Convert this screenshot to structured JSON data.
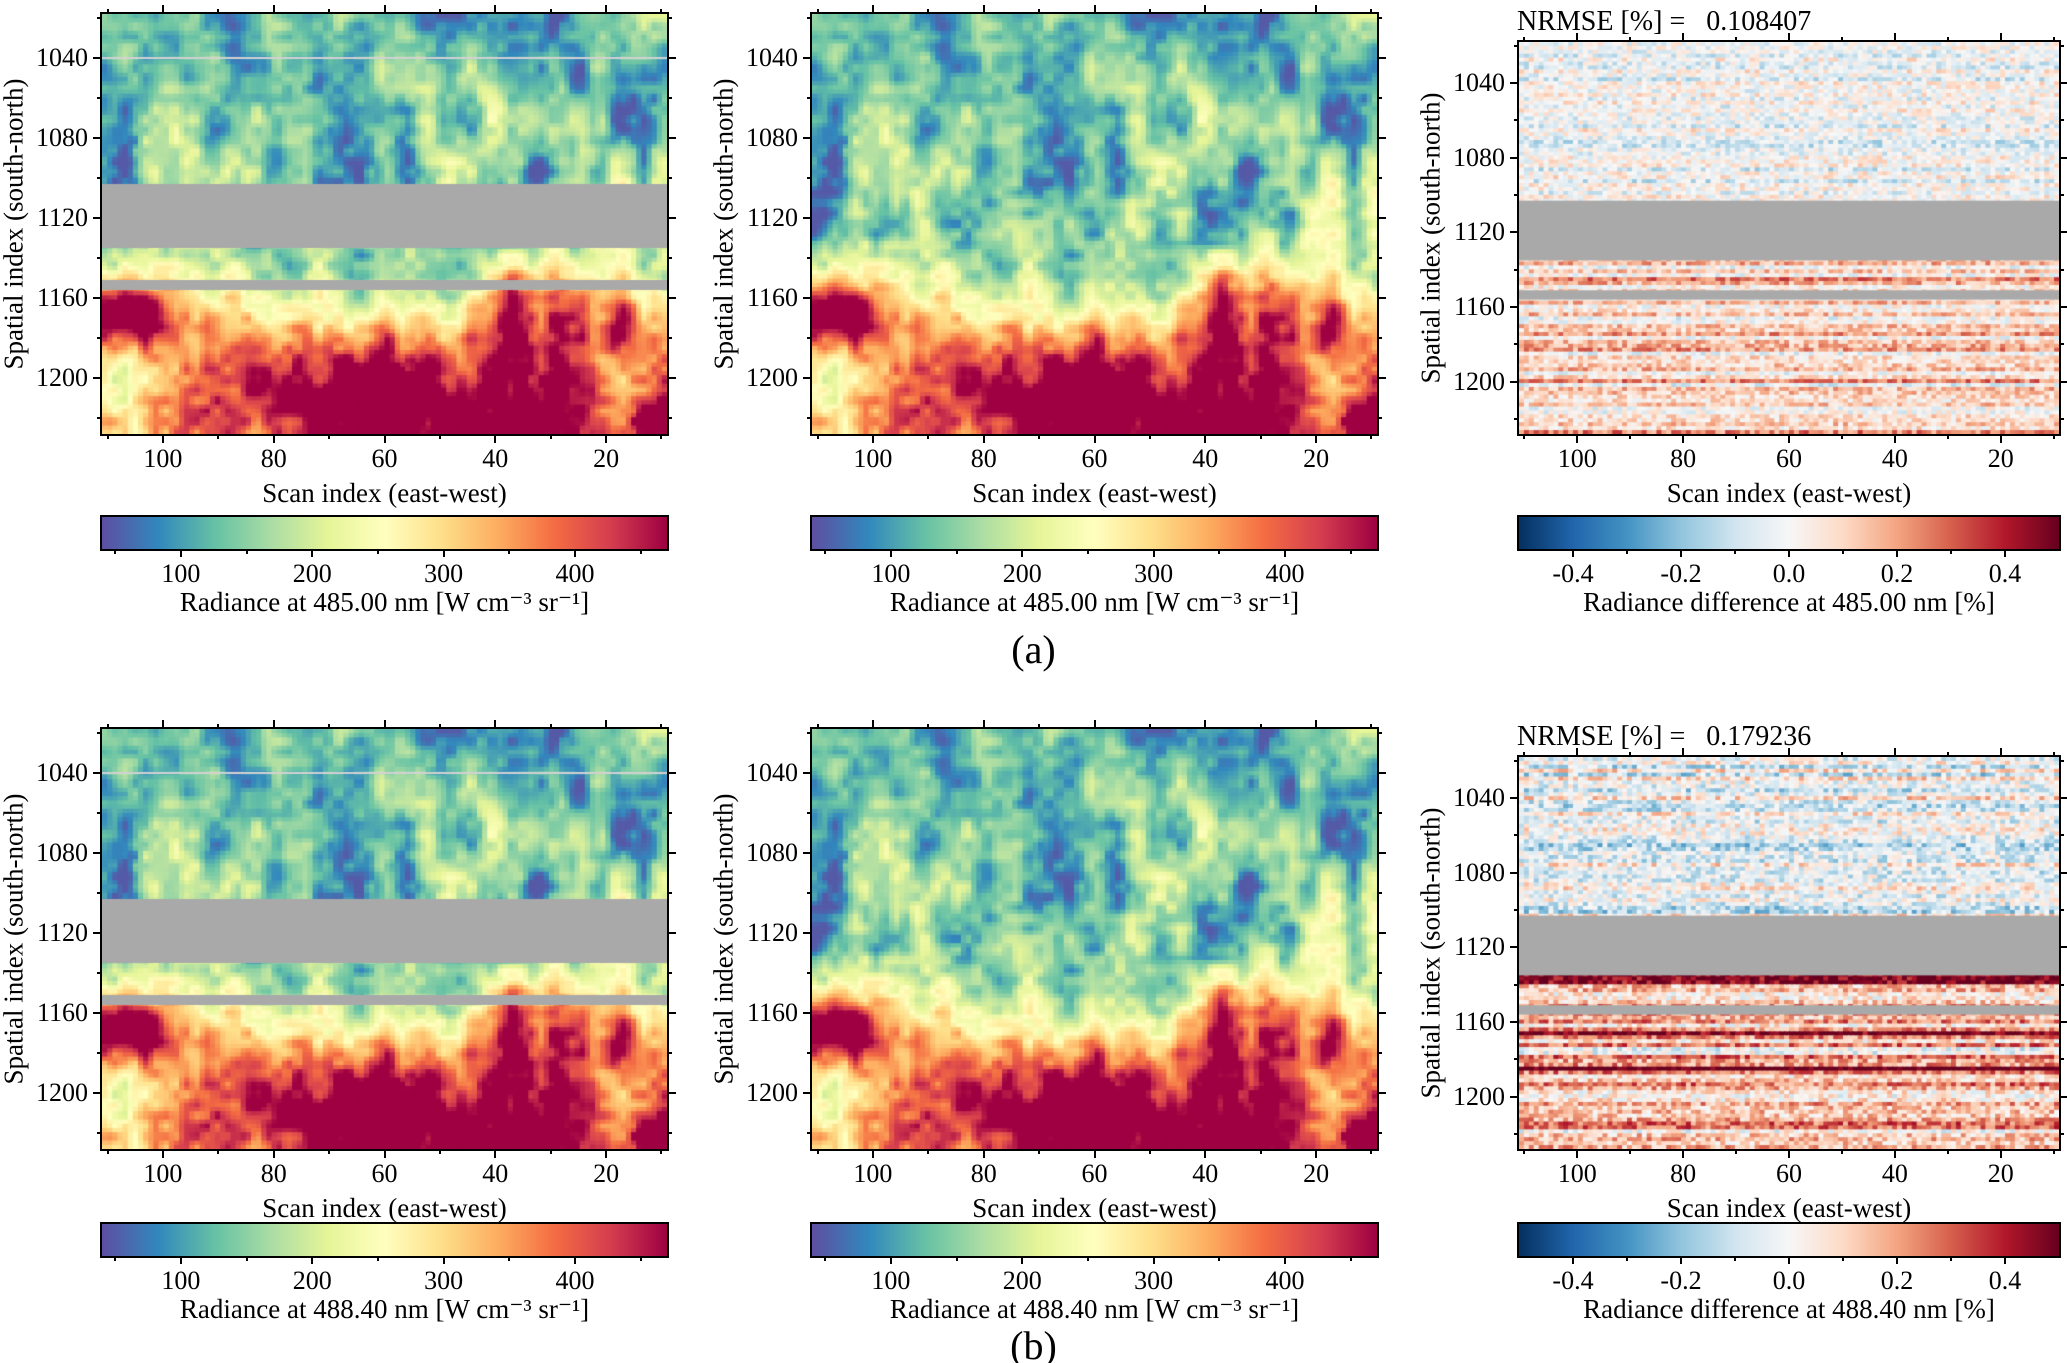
{
  "figure": {
    "background": "#ffffff",
    "rows": [
      {
        "caption": "(a)"
      },
      {
        "caption": "(b)"
      }
    ]
  },
  "chart_data": {
    "type": "heatmap",
    "grid": {
      "cols": 110,
      "rows": 100
    },
    "colormaps": {
      "spectral_r": [
        "#5e4fa2",
        "#3288bd",
        "#66c2a5",
        "#abdda4",
        "#e6f598",
        "#ffffbf",
        "#fee08b",
        "#fdae61",
        "#f46d43",
        "#d53e4f",
        "#9e0142"
      ],
      "rdbu_r": [
        "#053061",
        "#2166ac",
        "#4393c3",
        "#92c5de",
        "#d1e5f0",
        "#f7f7f7",
        "#fddbc7",
        "#f4a582",
        "#d6604d",
        "#b2182b",
        "#67001f"
      ]
    },
    "axes": {
      "xlabel": "Scan index (east-west)",
      "ylabel": "Spatial index (south-north)",
      "x_range": [
        111,
        9
      ],
      "y_range": [
        1018,
        1228
      ],
      "x_ticks": {
        "vals": [
          100,
          80,
          60,
          40,
          20
        ],
        "labels": [
          "100",
          "80",
          "60",
          "40",
          "20"
        ]
      },
      "x_minor": [
        110,
        90,
        70,
        50,
        30,
        10
      ],
      "y_ticks": {
        "vals": [
          1040,
          1080,
          1120,
          1160,
          1200
        ],
        "labels": [
          "1040",
          "1080",
          "1120",
          "1160",
          "1200"
        ]
      },
      "y_minor": [
        1020,
        1060,
        1100,
        1140,
        1180,
        1220
      ]
    },
    "gray_bands": [
      [
        1103,
        1135
      ],
      [
        1151,
        1156
      ]
    ],
    "thin_line_y": 1040,
    "gray_color": "#a9a9a9",
    "panels": [
      {
        "id": "a1",
        "kind": "radiance",
        "colormap": "spectral_r",
        "seed": 11,
        "show_gaps": true,
        "colorbar": {
          "range": [
            40,
            470
          ],
          "ticks": {
            "vals": [
              100,
              200,
              300,
              400
            ],
            "labels": [
              "100",
              "200",
              "300",
              "400"
            ]
          },
          "minor": [
            50,
            150,
            250,
            350,
            450
          ],
          "label": "Radiance at 485.00 nm [W cm⁻³ sr⁻¹]"
        }
      },
      {
        "id": "a2",
        "kind": "radiance",
        "colormap": "spectral_r",
        "seed": 11,
        "show_gaps": false,
        "colorbar": {
          "range": [
            40,
            470
          ],
          "ticks": {
            "vals": [
              100,
              200,
              300,
              400
            ],
            "labels": [
              "100",
              "200",
              "300",
              "400"
            ]
          },
          "minor": [
            50,
            150,
            250,
            350,
            450
          ],
          "label": "Radiance at 485.00 nm [W cm⁻³ sr⁻¹]"
        }
      },
      {
        "id": "a3",
        "kind": "difference",
        "colormap": "rdbu_r",
        "seed": 33,
        "stripe_strength": 0.35,
        "show_gaps": true,
        "title": "NRMSE [%] =   0.108407",
        "nrmse_percent": 0.108407,
        "colorbar": {
          "range": [
            -0.5,
            0.5
          ],
          "ticks": {
            "vals": [
              -0.4,
              -0.2,
              0,
              0.2,
              0.4
            ],
            "labels": [
              "-0.4",
              "-0.2",
              "0.0",
              "0.2",
              "0.4"
            ]
          },
          "minor": [
            -0.5,
            -0.3,
            -0.1,
            0.1,
            0.3,
            0.5
          ],
          "label": "Radiance difference at 485.00 nm [%]"
        }
      },
      {
        "id": "b1",
        "kind": "radiance",
        "colormap": "spectral_r",
        "seed": 11,
        "show_gaps": true,
        "colorbar": {
          "range": [
            40,
            470
          ],
          "ticks": {
            "vals": [
              100,
              200,
              300,
              400
            ],
            "labels": [
              "100",
              "200",
              "300",
              "400"
            ]
          },
          "minor": [
            50,
            150,
            250,
            350,
            450
          ],
          "label": "Radiance at 488.40 nm [W cm⁻³ sr⁻¹]"
        }
      },
      {
        "id": "b2",
        "kind": "radiance",
        "colormap": "spectral_r",
        "seed": 11,
        "show_gaps": false,
        "colorbar": {
          "range": [
            40,
            470
          ],
          "ticks": {
            "vals": [
              100,
              200,
              300,
              400
            ],
            "labels": [
              "100",
              "200",
              "300",
              "400"
            ]
          },
          "minor": [
            50,
            150,
            250,
            350,
            450
          ],
          "label": "Radiance at 488.40 nm [W cm⁻³ sr⁻¹]"
        }
      },
      {
        "id": "b3",
        "kind": "difference",
        "colormap": "rdbu_r",
        "seed": 77,
        "stripe_strength": 1.0,
        "show_gaps": true,
        "title": "NRMSE [%] =   0.179236",
        "nrmse_percent": 0.179236,
        "colorbar": {
          "range": [
            -0.5,
            0.5
          ],
          "ticks": {
            "vals": [
              -0.4,
              -0.2,
              0,
              0.2,
              0.4
            ],
            "labels": [
              "-0.4",
              "-0.2",
              "0.0",
              "0.2",
              "0.4"
            ]
          },
          "minor": [
            -0.5,
            -0.3,
            -0.1,
            0.1,
            0.3,
            0.5
          ],
          "label": "Radiance difference at 488.40 nm [%]"
        }
      }
    ]
  }
}
